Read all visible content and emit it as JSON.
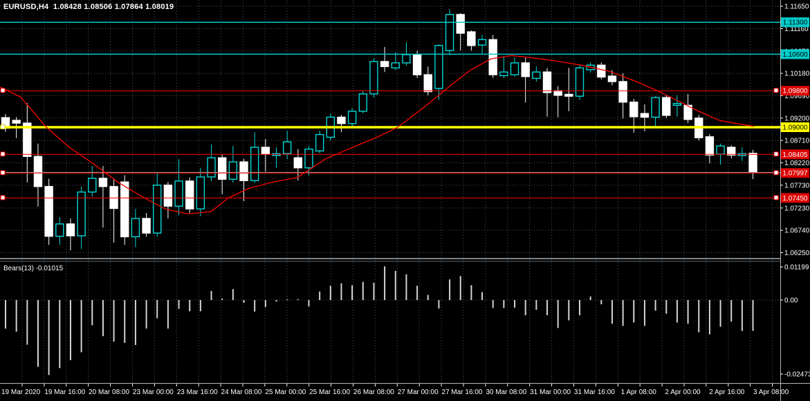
{
  "title": {
    "text": "EURUSD,H4  1.08428 1.08506 1.07864 1.08019"
  },
  "indicator": {
    "label": "Bears(13) -0.01015",
    "name": "Bears Power",
    "period": 13,
    "current_value": -0.01015
  },
  "colors": {
    "background": "#000000",
    "grid": "#4a5a68",
    "bull_candle": "#00d9d9",
    "bear_candle": "#ffffff",
    "ma_line": "#ff0000",
    "histogram": "#d4d4d4",
    "hline_red": "#ff0000",
    "hline_cyan": "#00cccc",
    "hline_yellow": "#ffff00",
    "hline_silver": "#b8b8b8",
    "badge_red": "#dd0000",
    "badge_cyan": "#00cccc",
    "badge_yellow": "#ffff00",
    "axis_text": "#ffffff",
    "axis_line": "#b6b6b6",
    "separator_light": "#cfcfcf",
    "separator_dark": "#5f6f7a"
  },
  "chart_data": {
    "type": "candlestick",
    "symbol": "EURUSD",
    "timeframe": "H4",
    "current_bar": {
      "open": 1.08428,
      "high": 1.08506,
      "low": 1.07864,
      "close": 1.08019
    },
    "ylim_main": [
      1.0625,
      1.1165
    ],
    "ylim_indicator": [
      -0.02473,
      0.01199
    ],
    "grid": "dashed",
    "candles": [
      [
        1.0921,
        1.0929,
        1.089,
        1.0898
      ],
      [
        1.0915,
        1.0922,
        1.0876,
        1.0909
      ],
      [
        1.0909,
        1.0953,
        1.0779,
        1.0836
      ],
      [
        1.0836,
        1.0864,
        1.0726,
        1.077
      ],
      [
        1.077,
        1.0787,
        1.0642,
        1.0661
      ],
      [
        1.0661,
        1.0703,
        1.0642,
        1.0688
      ],
      [
        1.0688,
        1.07,
        1.063,
        1.0662
      ],
      [
        1.0662,
        1.077,
        1.0633,
        1.0758
      ],
      [
        1.0758,
        1.0815,
        1.0748,
        1.0788
      ],
      [
        1.0788,
        1.0815,
        1.068,
        1.077
      ],
      [
        1.077,
        1.0788,
        1.0647,
        1.0722
      ],
      [
        1.078,
        1.0795,
        1.0642,
        1.066
      ],
      [
        1.066,
        1.0721,
        1.0637,
        1.07
      ],
      [
        1.07,
        1.0712,
        1.066,
        1.0668
      ],
      [
        1.0668,
        1.0799,
        1.066,
        1.0773
      ],
      [
        1.0773,
        1.078,
        1.07,
        1.0727
      ],
      [
        1.0727,
        1.083,
        1.0707,
        1.0782
      ],
      [
        1.0782,
        1.079,
        1.0712,
        1.0721
      ],
      [
        1.0721,
        1.0811,
        1.0705,
        1.0791
      ],
      [
        1.0791,
        1.0862,
        1.0782,
        1.0833
      ],
      [
        1.0833,
        1.084,
        1.0753,
        1.0786
      ],
      [
        1.0786,
        1.0859,
        1.0779,
        1.0824
      ],
      [
        1.0824,
        1.0831,
        1.0738,
        1.0783
      ],
      [
        1.0783,
        1.0889,
        1.0778,
        1.0856
      ],
      [
        1.0856,
        1.0874,
        1.0803,
        1.0841
      ],
      [
        1.0838,
        1.0856,
        1.0811,
        1.0842
      ],
      [
        1.0842,
        1.0892,
        1.083,
        1.0868
      ],
      [
        1.0833,
        1.0852,
        1.0783,
        1.0811
      ],
      [
        1.0811,
        1.0859,
        1.0794,
        1.0852
      ],
      [
        1.0848,
        1.0892,
        1.0843,
        1.0884
      ],
      [
        1.0878,
        1.093,
        1.0871,
        1.0922
      ],
      [
        1.0922,
        1.0927,
        1.0889,
        1.0908
      ],
      [
        1.0908,
        1.0942,
        1.09,
        1.0935
      ],
      [
        1.0935,
        1.098,
        1.093,
        1.0973
      ],
      [
        1.0973,
        1.1051,
        1.0965,
        1.1044
      ],
      [
        1.1044,
        1.1076,
        1.1021,
        1.1033
      ],
      [
        1.103,
        1.1064,
        1.1025,
        1.1041
      ],
      [
        1.1041,
        1.1086,
        1.1035,
        1.1059
      ],
      [
        1.1059,
        1.1068,
        1.1008,
        1.1015
      ],
      [
        1.1015,
        1.1033,
        1.097,
        1.0978
      ],
      [
        1.0985,
        1.1082,
        1.096,
        1.1079
      ],
      [
        1.1068,
        1.1158,
        1.1058,
        1.1147
      ],
      [
        1.1147,
        1.115,
        1.1068,
        1.1106
      ],
      [
        1.1109,
        1.1112,
        1.1068,
        1.1079
      ],
      [
        1.108,
        1.1102,
        1.1061,
        1.1092
      ],
      [
        1.1092,
        1.1102,
        1.1008,
        1.1015
      ],
      [
        1.1013,
        1.1056,
        1.1008,
        1.1021
      ],
      [
        1.1015,
        1.1053,
        1.1011,
        1.1041
      ],
      [
        1.1041,
        1.1052,
        1.0954,
        1.1011
      ],
      [
        1.1007,
        1.1033,
        1.1,
        1.1021
      ],
      [
        1.1021,
        1.103,
        1.0923,
        1.0976
      ],
      [
        1.098,
        1.099,
        1.0922,
        1.097
      ],
      [
        1.0972,
        1.103,
        1.0935,
        1.0968
      ],
      [
        1.0968,
        1.1036,
        1.096,
        1.103
      ],
      [
        1.1026,
        1.1042,
        1.102,
        1.1036
      ],
      [
        1.1036,
        1.1042,
        1.1005,
        1.101
      ],
      [
        1.1012,
        1.1025,
        1.0992,
        1.1
      ],
      [
        1.1,
        1.1018,
        1.0919,
        1.0955
      ],
      [
        1.0955,
        1.0962,
        1.0888,
        1.0923
      ],
      [
        1.093,
        1.095,
        1.0891,
        1.0922
      ],
      [
        1.0922,
        1.0968,
        1.0902,
        1.0965
      ],
      [
        1.0965,
        1.097,
        1.092,
        1.0926
      ],
      [
        1.0948,
        1.097,
        1.0923,
        1.0952
      ],
      [
        1.0948,
        1.0973,
        1.0909,
        1.0917
      ],
      [
        1.092,
        1.0927,
        1.0871,
        1.0877
      ],
      [
        1.0879,
        1.0885,
        1.0821,
        1.0839
      ],
      [
        1.0841,
        1.0864,
        1.0818,
        1.0859
      ],
      [
        1.0856,
        1.086,
        1.0832,
        1.0839
      ],
      [
        1.0838,
        1.0856,
        1.0826,
        1.0842
      ],
      [
        1.08428,
        1.08506,
        1.07864,
        1.08019
      ]
    ],
    "bears_power": [
      -0.0094,
      -0.0104,
      -0.0147,
      -0.022,
      -0.0247,
      -0.0224,
      -0.0198,
      -0.0172,
      -0.0083,
      -0.0119,
      -0.0137,
      -0.0141,
      -0.0148,
      -0.0094,
      -0.006,
      -0.0094,
      -0.0029,
      -0.0037,
      -0.0037,
      0.003,
      0.0005,
      0.0036,
      -0.0009,
      -0.0038,
      -0.0023,
      -0.0005,
      0.0002,
      0.0003,
      -0.0021,
      0.0028,
      0.0047,
      0.0055,
      0.0049,
      0.006,
      0.0057,
      0.0111,
      0.0096,
      0.0085,
      0.0047,
      0.0017,
      -0.0028,
      0.0068,
      0.0079,
      0.0049,
      0.0026,
      -0.0026,
      -0.0026,
      -0.0025,
      -0.005,
      -0.0032,
      -0.005,
      -0.0092,
      -0.0067,
      -0.005,
      0.0012,
      -0.0014,
      -0.0078,
      -0.0085,
      -0.0074,
      -0.0085,
      -0.0035,
      -0.0045,
      -0.0074,
      -0.0078,
      -0.0106,
      -0.0113,
      -0.0088,
      -0.0071,
      -0.0102,
      -0.01015
    ],
    "ma_points": [
      [
        0,
        1.0988
      ],
      [
        30,
        1.0966
      ],
      [
        67,
        1.09
      ],
      [
        100,
        1.0856
      ],
      [
        135,
        1.082
      ],
      [
        170,
        1.078
      ],
      [
        205,
        1.0748
      ],
      [
        240,
        1.072
      ],
      [
        272,
        1.071
      ],
      [
        305,
        1.0715
      ],
      [
        330,
        1.0745
      ],
      [
        360,
        1.0766
      ],
      [
        395,
        1.078
      ],
      [
        430,
        1.079
      ],
      [
        470,
        1.083
      ],
      [
        510,
        1.0856
      ],
      [
        545,
        1.0878
      ],
      [
        575,
        1.09
      ],
      [
        620,
        1.0952
      ],
      [
        650,
        1.099
      ],
      [
        680,
        1.1025
      ],
      [
        710,
        1.105
      ],
      [
        740,
        1.1057
      ],
      [
        770,
        1.1052
      ],
      [
        800,
        1.1046
      ],
      [
        840,
        1.1036
      ],
      [
        882,
        1.1022
      ],
      [
        920,
        1.1
      ],
      [
        950,
        1.098
      ],
      [
        980,
        1.0958
      ],
      [
        1010,
        1.0935
      ],
      [
        1040,
        1.0915
      ],
      [
        1065,
        1.0908
      ],
      [
        1090,
        1.0902
      ]
    ],
    "hlines": [
      {
        "price": 1.113,
        "label": "1.11300",
        "color": "cyan",
        "width": 1.5,
        "badge": "cyan",
        "markers": "none"
      },
      {
        "price": 1.106,
        "label": "1.10600",
        "color": "cyan",
        "width": 1.5,
        "badge": "cyan",
        "markers": "none"
      },
      {
        "price": 1.098,
        "label": "1.09800",
        "color": "red",
        "width": 1,
        "badge": "red",
        "markers": "both"
      },
      {
        "price": 1.09,
        "label": "1.09000",
        "color": "yellow",
        "width": 3.5,
        "badge": "yellow",
        "markers": "left"
      },
      {
        "price": 1.08405,
        "label": "1.08405",
        "color": "red",
        "width": 1,
        "badge": "red",
        "markers": "both"
      },
      {
        "price": 1.0801,
        "label": "",
        "color": "silver",
        "width": 1,
        "badge": "none",
        "markers": "none"
      },
      {
        "price": 1.07997,
        "label": "1.07997",
        "color": "red",
        "width": 1,
        "badge": "red",
        "markers": "both"
      },
      {
        "price": 1.0745,
        "label": "1.07450",
        "color": "red",
        "width": 1,
        "badge": "red",
        "markers": "both"
      }
    ],
    "price_axis_labels": [
      {
        "text": "1.11650",
        "price": 1.1165
      },
      {
        "text": "1.11160",
        "price": 1.1116
      },
      {
        "text": "1.10670",
        "price": 1.1067
      },
      {
        "text": "1.10180",
        "price": 1.1018
      },
      {
        "text": "1.09690",
        "price": 1.0969
      },
      {
        "text": "1.09200",
        "price": 1.092
      },
      {
        "text": "1.08710",
        "price": 1.0871
      },
      {
        "text": "1.08220",
        "price": 1.0822
      },
      {
        "text": "1.07730",
        "price": 1.0773
      },
      {
        "text": "1.07230",
        "price": 1.0723
      },
      {
        "text": "1.06740",
        "price": 1.0674
      },
      {
        "text": "1.06250",
        "price": 1.0625
      }
    ],
    "indicator_axis_labels": [
      {
        "text": "0.01199",
        "value": 0.01199
      },
      {
        "text": "0.00",
        "value": 0.0
      },
      {
        "text": "-0.02473",
        "value": -0.02473
      }
    ],
    "time_axis_labels": [
      "19 Mar 2020",
      "19 Mar 16:00",
      "20 Mar 08:00",
      "23 Mar 00:00",
      "23 Mar 16:00",
      "24 Mar 08:00",
      "25 Mar 00:00",
      "25 Mar 16:00",
      "26 Mar 08:00",
      "27 Mar 00:00",
      "27 Mar 16:00",
      "30 Mar 08:00",
      "31 Mar 00:00",
      "31 Mar 16:00",
      "1 Apr 08:00",
      "2 Apr 00:00",
      "2 Apr 16:00",
      "3 Apr 08:00"
    ]
  }
}
